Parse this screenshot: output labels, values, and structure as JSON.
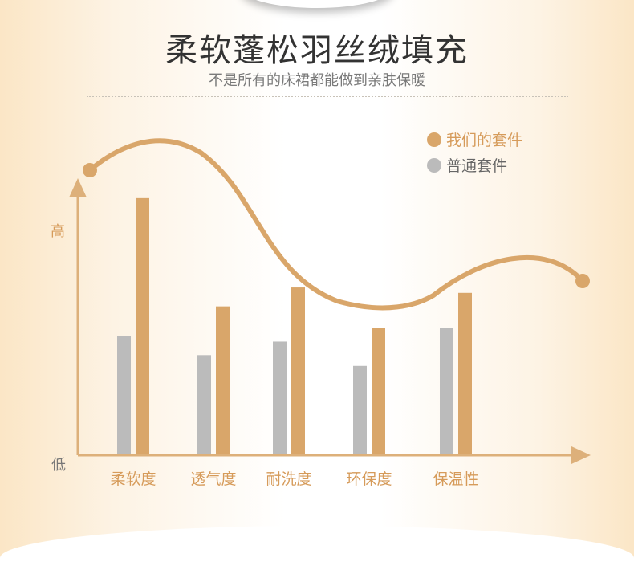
{
  "header": {
    "title": "柔软蓬松羽丝绒填充",
    "subtitle": "不是所有的床裙都能做到亲肤保暖"
  },
  "colors": {
    "ours": "#d9a66a",
    "regular": "#bbbbbb",
    "axis": "#ddb07a",
    "category_text": "#d69b5a"
  },
  "chart_data": {
    "type": "bar",
    "title": "",
    "y_axis": {
      "high_label": "高",
      "low_label": "低",
      "numeric_ticks": false
    },
    "ylim": [
      0,
      100
    ],
    "grid": false,
    "legend_position": "top-right",
    "categories": [
      "柔软度",
      "透气度",
      "耐洗度",
      "环保度",
      "保温性"
    ],
    "series": [
      {
        "name": "普通套件",
        "color": "#bbbbbb",
        "values": [
          44,
          37,
          42,
          33,
          47
        ]
      },
      {
        "name": "我们的套件",
        "color": "#d9a66a",
        "values": [
          95,
          55,
          62,
          47,
          60
        ]
      }
    ],
    "decorative_curve": true
  }
}
